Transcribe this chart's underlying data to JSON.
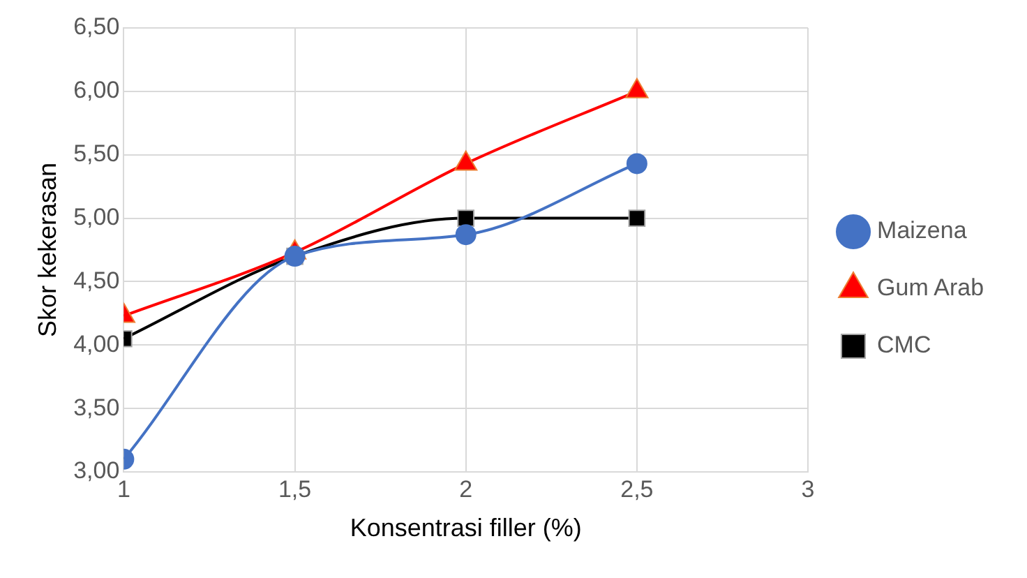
{
  "chart_data": {
    "type": "line",
    "xlabel": "Konsentrasi filler (%)",
    "ylabel": "Skor kekerasan",
    "x": [
      1,
      1.5,
      2,
      2.5
    ],
    "series": [
      {
        "name": "Maizena",
        "color": "#4472c4",
        "marker": "circle",
        "values": [
          3.1,
          4.7,
          4.87,
          5.43
        ]
      },
      {
        "name": "Gum Arab",
        "color": "#ff0000",
        "marker": "triangle",
        "values": [
          4.23,
          4.73,
          5.43,
          6.0
        ]
      },
      {
        "name": "CMC",
        "color": "#000000",
        "marker": "square",
        "values": [
          4.05,
          4.7,
          5.0,
          5.0
        ]
      }
    ],
    "xlim": [
      1,
      3
    ],
    "xticks": [
      1,
      {
        "value": 1.5,
        "label": "1,5"
      },
      2,
      {
        "value": 2.5,
        "label": "2,5"
      },
      3
    ],
    "ylim": [
      3,
      6.5
    ],
    "yticks": [
      {
        "value": 3,
        "label": "3,00"
      },
      {
        "value": 3.5,
        "label": "3,50"
      },
      {
        "value": 4,
        "label": "4,00"
      },
      {
        "value": 4.5,
        "label": "4,50"
      },
      {
        "value": 5,
        "label": "5,00"
      },
      {
        "value": 5.5,
        "label": "5,50"
      },
      {
        "value": 6,
        "label": "6,00"
      },
      {
        "value": 6.5,
        "label": "6,50"
      }
    ],
    "grid": true,
    "legend": "right"
  }
}
